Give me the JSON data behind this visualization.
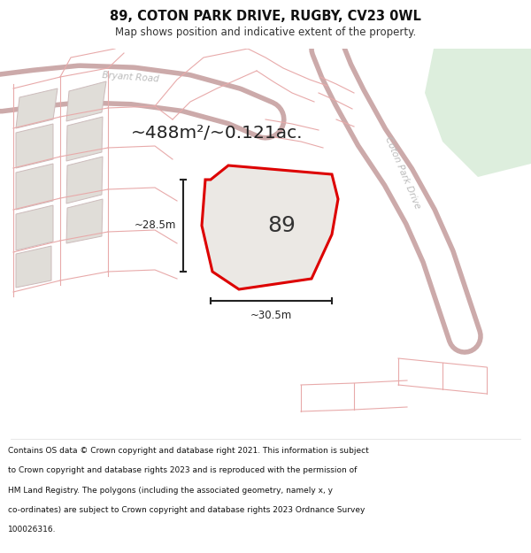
{
  "title_line1": "89, COTON PARK DRIVE, RUGBY, CV23 0WL",
  "title_line2": "Map shows position and indicative extent of the property.",
  "area_label": "~488m²/~0.121ac.",
  "plot_label": "89",
  "dim_width": "~30.5m",
  "dim_height": "~28.5m",
  "footer_lines": [
    "Contains OS data © Crown copyright and database right 2021. This information is subject",
    "to Crown copyright and database rights 2023 and is reproduced with the permission of",
    "HM Land Registry. The polygons (including the associated geometry, namely x, y",
    "co-ordinates) are subject to Crown copyright and database rights 2023 Ordnance Survey",
    "100026316."
  ],
  "map_bg": "#f7f4f1",
  "road_fill": "#ffffff",
  "road_edge_color": "#ccaaaa",
  "plot_fill": "#e8e4e0",
  "plot_edge": "#dd0000",
  "green_fill": "#ddeedd",
  "grey_block_fill": "#e0ddd8",
  "grey_block_edge": "#ccbbbb",
  "prop_line_color": "#e8aaaa",
  "dim_color": "#222222",
  "label_color": "#aaaaaa",
  "title_bg": "#ffffff",
  "footer_bg": "#ffffff",
  "text_color": "#111111"
}
